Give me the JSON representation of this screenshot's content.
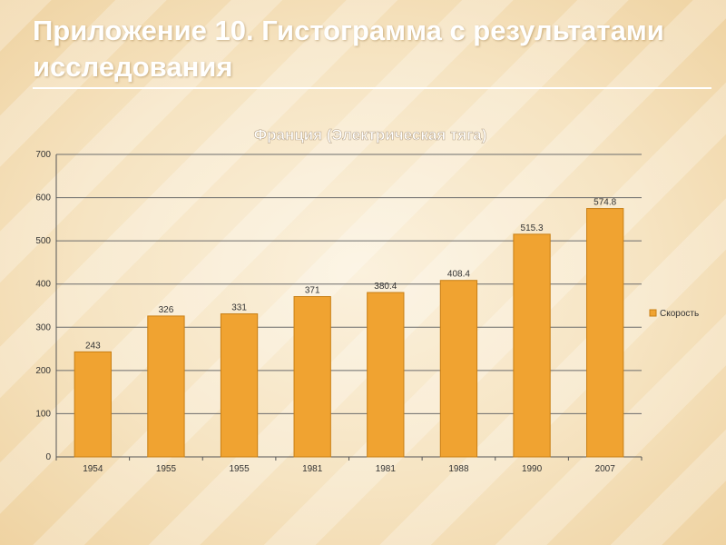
{
  "slide": {
    "title": "Приложение 10. Гистограмма с результатами исследования"
  },
  "colors": {
    "bar_fill": "#f0a331",
    "bar_stroke": "#c87f14",
    "gridline": "#6b6b6b",
    "axis": "#555555"
  },
  "chart_data": {
    "type": "bar",
    "title": "Франция (Электрическая тяга)",
    "categories": [
      "1954",
      "1955",
      "1955",
      "1981",
      "1981",
      "1988",
      "1990",
      "2007"
    ],
    "series": [
      {
        "name": "Скорость",
        "values": [
          243,
          326,
          331,
          371,
          380.4,
          408.4,
          515.3,
          574.8
        ],
        "labels": [
          "243",
          "326",
          "331",
          "371",
          "380.4",
          "408.4",
          "515.3",
          "574.8"
        ]
      }
    ],
    "ylim": [
      0,
      700
    ],
    "yticks": [
      0,
      100,
      200,
      300,
      400,
      500,
      600,
      700
    ],
    "grid": true,
    "legend_position": "right"
  }
}
